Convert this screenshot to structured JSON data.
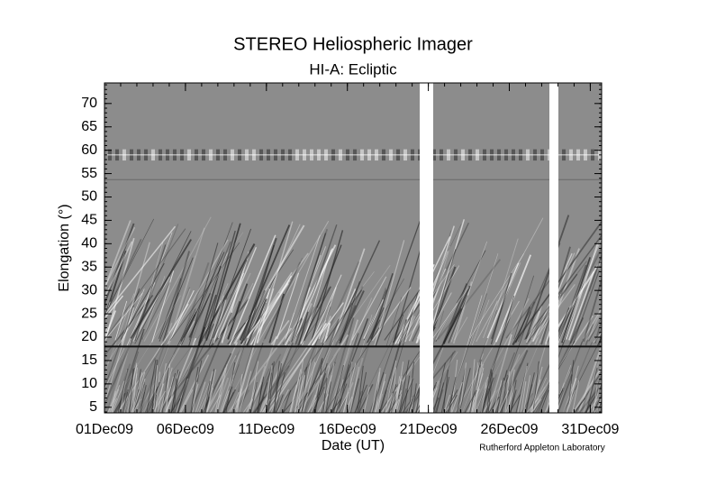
{
  "chart_data": {
    "type": "jmap",
    "title": "STEREO Heliospheric Imager",
    "subtitle": "HI-A: Ecliptic",
    "y_label": "Elongation (°)",
    "x_label": "Date (UT)",
    "credit": "Rutherford Appleton Laboratory",
    "ylim": [
      3.8,
      74.4
    ],
    "yticks": [
      5,
      10,
      15,
      20,
      25,
      30,
      35,
      40,
      45,
      50,
      55,
      60,
      65,
      70
    ],
    "xlim": [
      1,
      31.7
    ],
    "xticks": [
      {
        "value": 1,
        "label": "01Dec09"
      },
      {
        "value": 6,
        "label": "06Dec09"
      },
      {
        "value": 11,
        "label": "11Dec09"
      },
      {
        "value": 16,
        "label": "16Dec09"
      },
      {
        "value": 21,
        "label": "21Dec09"
      },
      {
        "value": 26,
        "label": "26Dec09"
      },
      {
        "value": 31,
        "label": "31Dec09"
      }
    ]
  }
}
